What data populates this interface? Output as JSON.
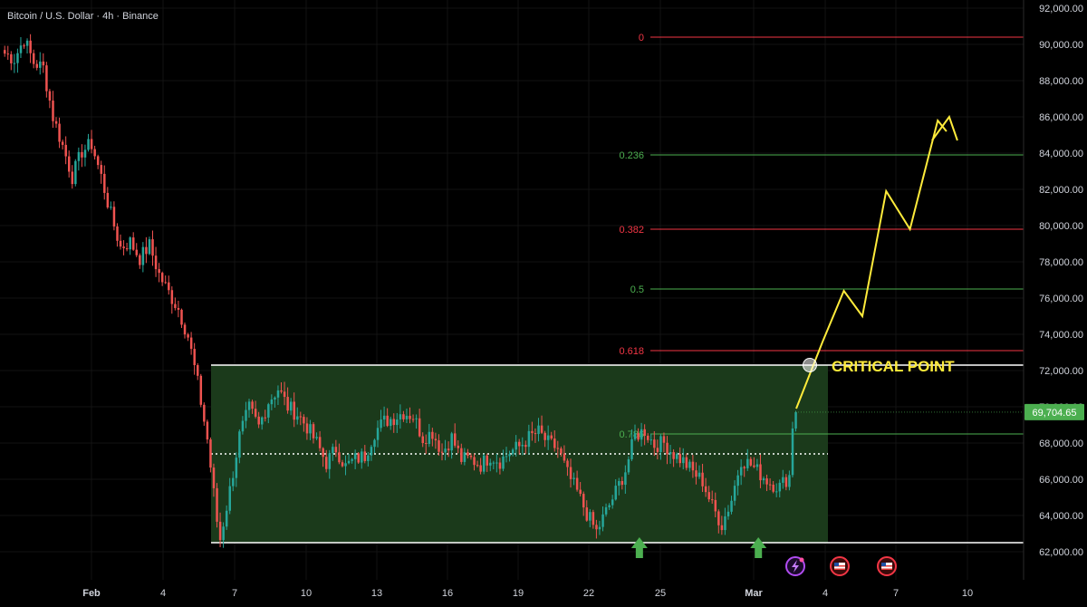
{
  "header": {
    "title": "Bitcoin / U.S. Dollar · 4h · Binance"
  },
  "chart_data": {
    "type": "candlestick",
    "title": "Bitcoin / U.S. Dollar · 4h · Binance",
    "ylim": [
      61500,
      92000
    ],
    "y_ticks": [
      62000,
      64000,
      66000,
      68000,
      70000,
      72000,
      74000,
      76000,
      78000,
      80000,
      82000,
      84000,
      86000,
      88000,
      90000,
      92000
    ],
    "y_tick_labels": [
      "62,000.00",
      "64,000.00",
      "66,000.00",
      "68,000.00",
      "70,000.00",
      "72,000.00",
      "74,000.00",
      "76,000.00",
      "78,000.00",
      "80,000.00",
      "82,000.00",
      "84,000.00",
      "86,000.00",
      "88,000.00",
      "90,000.00",
      "92,000.00"
    ],
    "x_ticks": [
      {
        "label": "Feb",
        "bold": true
      },
      {
        "label": "4"
      },
      {
        "label": "7"
      },
      {
        "label": "10"
      },
      {
        "label": "13"
      },
      {
        "label": "16"
      },
      {
        "label": "19"
      },
      {
        "label": "22"
      },
      {
        "label": "25"
      },
      {
        "label": "Mar",
        "bold": true
      },
      {
        "label": "4"
      },
      {
        "label": "7"
      },
      {
        "label": "10"
      }
    ],
    "current_price": 69704.65,
    "current_price_label": "69,704.65",
    "fib_levels": [
      {
        "label": "0",
        "price": 90400,
        "color": "#f23645"
      },
      {
        "label": "0.236",
        "price": 83900,
        "color": "#4caf50"
      },
      {
        "label": "0.382",
        "price": 79800,
        "color": "#f23645"
      },
      {
        "label": "0.5",
        "price": 76500,
        "color": "#4caf50"
      },
      {
        "label": "0.618",
        "price": 73100,
        "color": "#f23645"
      },
      {
        "label": "0.786",
        "price": 68500,
        "color": "#4caf50"
      }
    ],
    "range_box": {
      "top": 72300,
      "bottom": 62500,
      "mid": 67400,
      "fill": "#1c3d1c"
    },
    "projection": [
      [
        69900,
        70000
      ],
      [
        73600,
        72000
      ],
      [
        76400,
        73600
      ],
      [
        75000,
        75000
      ],
      [
        81900,
        76800
      ],
      [
        79800,
        78600
      ],
      [
        85800,
        80700
      ],
      [
        85300,
        81500
      ]
    ],
    "projection_x_units": "candle index from first candle",
    "critical_point": {
      "label": "CRITICAL POINT",
      "price": 72300
    },
    "price_path": [
      [
        0,
        89500
      ],
      [
        3,
        89200
      ],
      [
        6,
        90300
      ],
      [
        9,
        89000
      ],
      [
        12,
        88700
      ],
      [
        15,
        86000
      ],
      [
        18,
        84400
      ],
      [
        21,
        82700
      ],
      [
        24,
        84100
      ],
      [
        27,
        84500
      ],
      [
        30,
        82700
      ],
      [
        33,
        80600
      ],
      [
        36,
        78800
      ],
      [
        39,
        79100
      ],
      [
        42,
        78200
      ],
      [
        45,
        78900
      ],
      [
        48,
        77300
      ],
      [
        51,
        76300
      ],
      [
        54,
        75400
      ],
      [
        57,
        73900
      ],
      [
        60,
        71300
      ],
      [
        63,
        68200
      ],
      [
        66,
        63700
      ],
      [
        67,
        62700
      ],
      [
        70,
        65400
      ],
      [
        73,
        68400
      ],
      [
        76,
        69900
      ],
      [
        79,
        68900
      ],
      [
        82,
        70300
      ],
      [
        85,
        71000
      ],
      [
        88,
        70000
      ],
      [
        91,
        69600
      ],
      [
        94,
        68900
      ],
      [
        97,
        68000
      ],
      [
        100,
        66900
      ],
      [
        103,
        67700
      ],
      [
        106,
        66700
      ],
      [
        109,
        67100
      ],
      [
        112,
        67300
      ],
      [
        115,
        68600
      ],
      [
        118,
        69200
      ],
      [
        121,
        69400
      ],
      [
        124,
        69700
      ],
      [
        127,
        69500
      ],
      [
        130,
        68300
      ],
      [
        133,
        68600
      ],
      [
        136,
        67500
      ],
      [
        139,
        68300
      ],
      [
        142,
        67100
      ],
      [
        145,
        67100
      ],
      [
        148,
        66800
      ],
      [
        151,
        67300
      ],
      [
        154,
        67000
      ],
      [
        157,
        67500
      ],
      [
        160,
        67800
      ],
      [
        163,
        68300
      ],
      [
        166,
        68600
      ],
      [
        169,
        68000
      ],
      [
        172,
        67700
      ],
      [
        175,
        66300
      ],
      [
        178,
        65300
      ],
      [
        181,
        64100
      ],
      [
        184,
        63100
      ],
      [
        187,
        64200
      ],
      [
        190,
        65300
      ],
      [
        193,
        66500
      ],
      [
        196,
        68400
      ],
      [
        199,
        68700
      ],
      [
        202,
        67900
      ],
      [
        205,
        68000
      ],
      [
        208,
        67400
      ],
      [
        211,
        67000
      ],
      [
        214,
        66400
      ],
      [
        217,
        65900
      ],
      [
        220,
        64500
      ],
      [
        223,
        63500
      ],
      [
        226,
        64900
      ],
      [
        229,
        67100
      ],
      [
        232,
        66800
      ],
      [
        235,
        66300
      ],
      [
        238,
        65800
      ],
      [
        241,
        65600
      ],
      [
        244,
        66200
      ],
      [
        245,
        69000
      ],
      [
        246,
        69704.65
      ]
    ],
    "markers": [
      {
        "type": "up-arrow",
        "near_candle": 187,
        "color": "#4caf50"
      },
      {
        "type": "up-arrow",
        "near_candle": 224,
        "color": "#4caf50"
      }
    ],
    "bottom_icons": [
      "lightning-event-icon",
      "us-flag-icon",
      "us-flag-icon"
    ],
    "colors": {
      "up": "#26a69a",
      "down": "#ef5350",
      "background": "#000000",
      "grid": "#1a1a1a",
      "axis_text": "#d1d4dc",
      "projection": "#ffeb3b",
      "box_edge": "#ffffff",
      "price_tag": "#4caf50"
    }
  }
}
